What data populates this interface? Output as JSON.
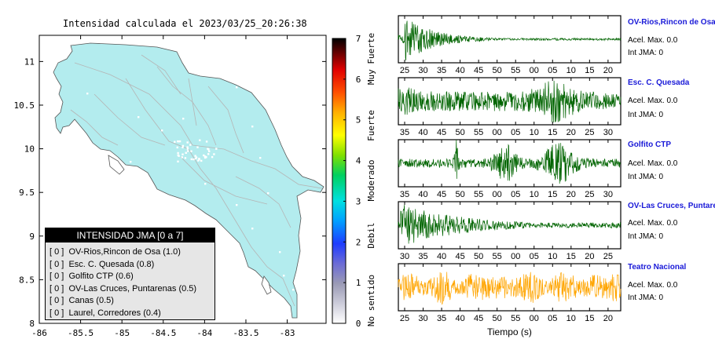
{
  "title": "Intensidad calculada el 2023/03/25_20:26:38",
  "map": {
    "x_ticks": [
      "-86",
      "-85.5",
      "-85",
      "-84.5",
      "-84",
      "-83.5",
      "-83"
    ],
    "y_ticks": [
      "11",
      "10.5",
      "10",
      "9.5",
      "9",
      "8.5",
      "8"
    ],
    "land_color": "#b3ecee"
  },
  "colorbar": {
    "ticks": [
      "0",
      "1",
      "2",
      "3",
      "4",
      "5",
      "6",
      "7"
    ],
    "labels": [
      "No sentido",
      "Debil",
      "Moderado",
      "Fuerte",
      "Muy Fuerte"
    ]
  },
  "legend": {
    "header": "INTENSIDAD JMA [0 a 7]",
    "items": [
      "[ 0 ]  OV-Rios,Rincon de Osa (1.0)",
      "[ 0 ]  Esc. C. Quesada (0.8)",
      "[ 0 ]  Golfito CTP (0.6)",
      "[ 0 ]  OV-Las Cruces, Puntarenas (0.5)",
      "[ 0 ]  Canas (0.5)",
      "[ 0 ]  Laurel, Corredores (0.4)"
    ]
  },
  "xlabel": "Tiempo (s)",
  "chart_data": {
    "type": "line",
    "traces": [
      {
        "name": "OV-Rios,Rincon de Osa",
        "accel_text": "Acel. Max. 0.0",
        "jma_text": "Int JMA: 0",
        "ticks": [
          "25",
          "30",
          "35",
          "40",
          "45",
          "50",
          "55",
          "00",
          "05",
          "10",
          "15",
          "20"
        ],
        "color": "#006400",
        "profile": "decay",
        "seed": 3
      },
      {
        "name": "Esc. C. Quesada",
        "accel_text": "Acel. Max. 0.0",
        "jma_text": "Int JMA: 0",
        "ticks": [
          "35",
          "40",
          "45",
          "50",
          "55",
          "00",
          "05",
          "10",
          "15",
          "20",
          "25",
          "30"
        ],
        "color": "#006400",
        "profile": "double",
        "seed": 7
      },
      {
        "name": "Golfito CTP",
        "accel_text": "Acel. Max. 0.0",
        "jma_text": "Int JMA: 0",
        "ticks": [
          "35",
          "40",
          "45",
          "50",
          "55",
          "00",
          "05",
          "10",
          "15",
          "20",
          "25",
          "30"
        ],
        "color": "#006400",
        "profile": "bursts",
        "seed": 11
      },
      {
        "name": "OV-Las Cruces, Puntarenas",
        "accel_text": "Acel. Max. 0.0",
        "jma_text": "Int JMA: 0",
        "ticks": [
          "30",
          "35",
          "40",
          "45",
          "50",
          "55",
          "00",
          "05",
          "10",
          "15",
          "20",
          "25"
        ],
        "color": "#006400",
        "profile": "decay2",
        "seed": 19
      },
      {
        "name": "Teatro Nacional",
        "accel_text": "Acel. Max. 0.0",
        "jma_text": "Int JMA: 0",
        "ticks": [
          "25",
          "30",
          "35",
          "40",
          "45",
          "50",
          "55",
          "00",
          "05",
          "10",
          "15",
          "20"
        ],
        "color": "#ffa500",
        "profile": "noise",
        "seed": 23
      }
    ]
  }
}
